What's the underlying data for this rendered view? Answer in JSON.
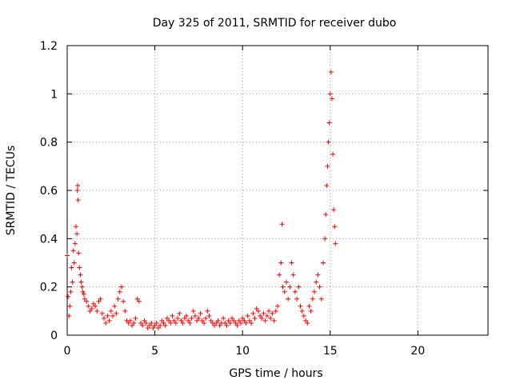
{
  "chart_data": {
    "type": "scatter",
    "title": "Day 325 of 2011, SRMTID for receiver dubo",
    "xlabel": "GPS time / hours",
    "ylabel": "SRMTID / TECUs",
    "xlim": [
      0,
      24
    ],
    "ylim": [
      0,
      1.2
    ],
    "xticks": [
      "0",
      "5",
      "10",
      "15",
      "20"
    ],
    "yticks": [
      "0",
      "0.2",
      "0.4",
      "0.6",
      "0.8",
      "1",
      "1.2"
    ],
    "grid": true,
    "marker": "+",
    "color": "#ff0000",
    "series": [
      {
        "name": "SRMTID",
        "points": [
          [
            0.0,
            0.33
          ],
          [
            0.05,
            0.16
          ],
          [
            0.1,
            0.08
          ],
          [
            0.15,
            0.12
          ],
          [
            0.2,
            0.18
          ],
          [
            0.25,
            0.28
          ],
          [
            0.3,
            0.22
          ],
          [
            0.35,
            0.35
          ],
          [
            0.4,
            0.3
          ],
          [
            0.45,
            0.38
          ],
          [
            0.5,
            0.45
          ],
          [
            0.55,
            0.42
          ],
          [
            0.58,
            0.6
          ],
          [
            0.6,
            0.62
          ],
          [
            0.62,
            0.56
          ],
          [
            0.65,
            0.34
          ],
          [
            0.7,
            0.28
          ],
          [
            0.75,
            0.25
          ],
          [
            0.8,
            0.22
          ],
          [
            0.85,
            0.2
          ],
          [
            0.9,
            0.18
          ],
          [
            0.95,
            0.17
          ],
          [
            1.0,
            0.15
          ],
          [
            1.1,
            0.14
          ],
          [
            1.2,
            0.12
          ],
          [
            1.3,
            0.1
          ],
          [
            1.4,
            0.11
          ],
          [
            1.5,
            0.13
          ],
          [
            1.6,
            0.12
          ],
          [
            1.7,
            0.1
          ],
          [
            1.8,
            0.14
          ],
          [
            1.9,
            0.15
          ],
          [
            2.0,
            0.09
          ],
          [
            2.1,
            0.07
          ],
          [
            2.2,
            0.05
          ],
          [
            2.3,
            0.08
          ],
          [
            2.4,
            0.06
          ],
          [
            2.5,
            0.1
          ],
          [
            2.6,
            0.08
          ],
          [
            2.7,
            0.12
          ],
          [
            2.8,
            0.09
          ],
          [
            2.9,
            0.15
          ],
          [
            3.0,
            0.18
          ],
          [
            3.1,
            0.2
          ],
          [
            3.2,
            0.14
          ],
          [
            3.3,
            0.1
          ],
          [
            3.4,
            0.06
          ],
          [
            3.5,
            0.05
          ],
          [
            3.6,
            0.06
          ],
          [
            3.7,
            0.04
          ],
          [
            3.8,
            0.05
          ],
          [
            3.9,
            0.07
          ],
          [
            4.0,
            0.15
          ],
          [
            4.1,
            0.14
          ],
          [
            4.2,
            0.05
          ],
          [
            4.3,
            0.04
          ],
          [
            4.4,
            0.06
          ],
          [
            4.5,
            0.05
          ],
          [
            4.6,
            0.03
          ],
          [
            4.7,
            0.04
          ],
          [
            4.8,
            0.05
          ],
          [
            4.9,
            0.03
          ],
          [
            5.0,
            0.04
          ],
          [
            5.1,
            0.05
          ],
          [
            5.2,
            0.03
          ],
          [
            5.3,
            0.04
          ],
          [
            5.4,
            0.06
          ],
          [
            5.5,
            0.05
          ],
          [
            5.6,
            0.04
          ],
          [
            5.7,
            0.07
          ],
          [
            5.8,
            0.06
          ],
          [
            5.9,
            0.05
          ],
          [
            6.0,
            0.08
          ],
          [
            6.1,
            0.06
          ],
          [
            6.2,
            0.05
          ],
          [
            6.3,
            0.07
          ],
          [
            6.4,
            0.09
          ],
          [
            6.5,
            0.06
          ],
          [
            6.6,
            0.05
          ],
          [
            6.7,
            0.07
          ],
          [
            6.8,
            0.08
          ],
          [
            6.9,
            0.06
          ],
          [
            7.0,
            0.05
          ],
          [
            7.1,
            0.07
          ],
          [
            7.2,
            0.1
          ],
          [
            7.3,
            0.08
          ],
          [
            7.4,
            0.06
          ],
          [
            7.5,
            0.07
          ],
          [
            7.6,
            0.09
          ],
          [
            7.7,
            0.06
          ],
          [
            7.8,
            0.05
          ],
          [
            7.9,
            0.07
          ],
          [
            8.0,
            0.1
          ],
          [
            8.1,
            0.08
          ],
          [
            8.2,
            0.06
          ],
          [
            8.3,
            0.05
          ],
          [
            8.4,
            0.04
          ],
          [
            8.5,
            0.05
          ],
          [
            8.6,
            0.06
          ],
          [
            8.7,
            0.04
          ],
          [
            8.8,
            0.05
          ],
          [
            8.9,
            0.07
          ],
          [
            9.0,
            0.05
          ],
          [
            9.1,
            0.04
          ],
          [
            9.2,
            0.06
          ],
          [
            9.3,
            0.05
          ],
          [
            9.4,
            0.07
          ],
          [
            9.5,
            0.06
          ],
          [
            9.6,
            0.05
          ],
          [
            9.7,
            0.04
          ],
          [
            9.8,
            0.06
          ],
          [
            9.9,
            0.05
          ],
          [
            10.0,
            0.07
          ],
          [
            10.1,
            0.06
          ],
          [
            10.2,
            0.05
          ],
          [
            10.3,
            0.08
          ],
          [
            10.4,
            0.06
          ],
          [
            10.5,
            0.05
          ],
          [
            10.6,
            0.09
          ],
          [
            10.7,
            0.07
          ],
          [
            10.8,
            0.11
          ],
          [
            10.9,
            0.1
          ],
          [
            11.0,
            0.08
          ],
          [
            11.1,
            0.07
          ],
          [
            11.2,
            0.09
          ],
          [
            11.3,
            0.06
          ],
          [
            11.4,
            0.08
          ],
          [
            11.5,
            0.1
          ],
          [
            11.6,
            0.07
          ],
          [
            11.7,
            0.09
          ],
          [
            11.8,
            0.06
          ],
          [
            11.9,
            0.1
          ],
          [
            12.0,
            0.12
          ],
          [
            12.1,
            0.25
          ],
          [
            12.2,
            0.3
          ],
          [
            12.25,
            0.46
          ],
          [
            12.3,
            0.2
          ],
          [
            12.4,
            0.18
          ],
          [
            12.5,
            0.22
          ],
          [
            12.6,
            0.15
          ],
          [
            12.7,
            0.2
          ],
          [
            12.8,
            0.3
          ],
          [
            12.9,
            0.25
          ],
          [
            13.0,
            0.18
          ],
          [
            13.1,
            0.15
          ],
          [
            13.2,
            0.2
          ],
          [
            13.3,
            0.12
          ],
          [
            13.4,
            0.1
          ],
          [
            13.5,
            0.08
          ],
          [
            13.6,
            0.06
          ],
          [
            13.7,
            0.05
          ],
          [
            13.8,
            0.12
          ],
          [
            13.9,
            0.1
          ],
          [
            14.0,
            0.15
          ],
          [
            14.1,
            0.18
          ],
          [
            14.2,
            0.22
          ],
          [
            14.3,
            0.25
          ],
          [
            14.4,
            0.2
          ],
          [
            14.5,
            0.15
          ],
          [
            14.6,
            0.3
          ],
          [
            14.7,
            0.4
          ],
          [
            14.75,
            0.5
          ],
          [
            14.8,
            0.62
          ],
          [
            14.85,
            0.7
          ],
          [
            14.9,
            0.8
          ],
          [
            14.95,
            0.88
          ],
          [
            15.0,
            1.0
          ],
          [
            15.05,
            1.09
          ],
          [
            15.1,
            0.98
          ],
          [
            15.15,
            0.75
          ],
          [
            15.2,
            0.52
          ],
          [
            15.25,
            0.45
          ],
          [
            15.3,
            0.38
          ]
        ]
      }
    ]
  }
}
